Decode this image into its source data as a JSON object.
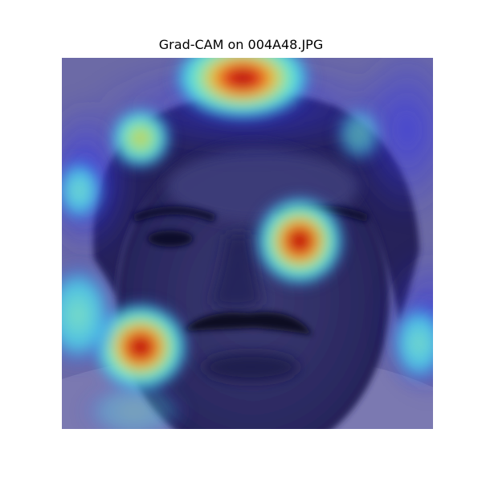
{
  "figure": {
    "title": "Grad-CAM on 004A48.JPG"
  },
  "image": {
    "subject": "portrait-face",
    "overlay": "gradcam-heatmap",
    "colormap": "jet",
    "colors": {
      "base_tint": "#6a68a8",
      "face_dark": "#1e1c4a",
      "hot": "#d40f0f",
      "warm": "#f2d23a",
      "cool": "#5ef0e0",
      "cold": "#2d2dd6"
    }
  }
}
